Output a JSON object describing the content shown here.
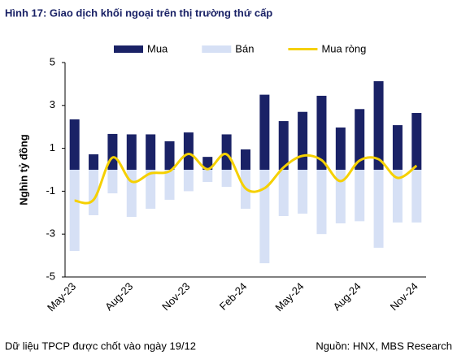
{
  "chart_data": {
    "type": "bar-line",
    "title": "Hình 17: Giao dịch khối ngoại trên thị trường thứ cấp",
    "y_label": "Nghìn tỷ đồng",
    "categories": [
      "May-23",
      null,
      null,
      "Aug-23",
      null,
      null,
      "Nov-23",
      null,
      null,
      "Feb-24",
      null,
      null,
      "May-24",
      null,
      null,
      "Aug-24",
      null,
      null,
      "Nov-24"
    ],
    "series": [
      {
        "name": "Mua",
        "type": "bar",
        "color": "#1a2266",
        "values": [
          2.35,
          0.72,
          1.67,
          1.65,
          1.65,
          1.33,
          1.74,
          0.6,
          1.65,
          0.95,
          3.5,
          2.27,
          2.7,
          3.45,
          1.97,
          2.83,
          4.13,
          2.08,
          2.65
        ]
      },
      {
        "name": "Bán",
        "type": "bar",
        "color": "#d6e0f5",
        "values": [
          -3.79,
          -2.12,
          -1.1,
          -2.2,
          -1.82,
          -1.4,
          -1.0,
          -0.57,
          -0.8,
          -1.82,
          -4.36,
          -2.16,
          -2.05,
          -3.0,
          -2.5,
          -2.4,
          -3.64,
          -2.46,
          -2.46
        ]
      },
      {
        "name": "Mua ròng",
        "type": "line",
        "color": "#f5d000",
        "values": [
          -1.44,
          -1.4,
          0.57,
          -0.55,
          -0.17,
          -0.07,
          0.74,
          0.03,
          0.72,
          -0.87,
          -0.86,
          0.11,
          0.65,
          0.45,
          -0.53,
          0.43,
          0.49,
          -0.38,
          0.19
        ]
      }
    ],
    "ylim": [
      -5,
      5
    ],
    "yticks": [
      5,
      3,
      1,
      -1,
      -3,
      -5
    ],
    "notes": [
      "Dữ liệu TPCP được chốt vào ngày 19/12",
      "Nguồn: HNX, MBS Research"
    ]
  }
}
